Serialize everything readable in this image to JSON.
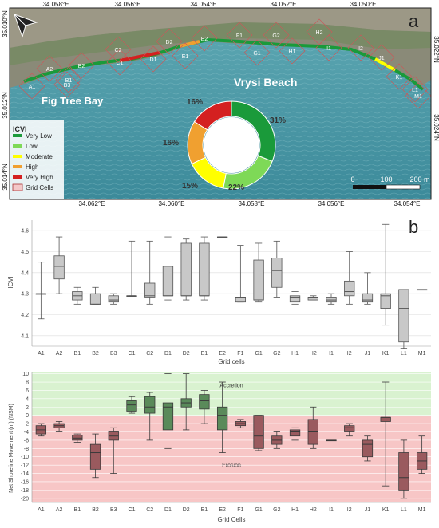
{
  "map": {
    "panel_letter": "a",
    "top_lons": [
      "34.058°E",
      "34.056°E",
      "34.054°E",
      "34.052°E",
      "34.050°E"
    ],
    "bottom_lons": [
      "34.062°E",
      "34.060°E",
      "34.058°E",
      "34.056°E",
      "34.054°E"
    ],
    "left_lats": [
      "35.010°N",
      "35.012°N",
      "35.014°N"
    ],
    "right_lats": [
      "35.022°N",
      "35.024°N"
    ],
    "place_labels": [
      "Vrysi Beach",
      "Fig Tree Bay"
    ],
    "cell_labels": [
      "A1",
      "A2",
      "B1",
      "B2",
      "B3",
      "C1",
      "C2",
      "D1",
      "D2",
      "E1",
      "E2",
      "F1",
      "G1",
      "G2",
      "H1",
      "H2",
      "I1",
      "I2",
      "J1",
      "K1",
      "L1",
      "M1"
    ],
    "legend": {
      "title": "ICVI",
      "items": [
        {
          "label": "Very Low",
          "color": "#1a9a3a"
        },
        {
          "label": "Low",
          "color": "#7ed957"
        },
        {
          "label": "Moderate",
          "color": "#ffff00"
        },
        {
          "label": "High",
          "color": "#f0a030"
        },
        {
          "label": "Very High",
          "color": "#d42020"
        },
        {
          "label": "Grid Cells",
          "color": "#f4c8c8"
        }
      ]
    },
    "donut": {
      "segments": [
        {
          "label": "31%",
          "value": 31,
          "color": "#1a9a3a"
        },
        {
          "label": "22%",
          "value": 22,
          "color": "#7ed957"
        },
        {
          "label": "15%",
          "value": 15,
          "color": "#ffff00"
        },
        {
          "label": "16%",
          "value": 16,
          "color": "#f0a030"
        },
        {
          "label": "16%",
          "value": 16,
          "color": "#d42020"
        }
      ]
    },
    "scale": {
      "labels": [
        "0",
        "100",
        "200 m"
      ]
    }
  },
  "chart_data": [
    {
      "type": "box",
      "panel_letter": "b",
      "xlabel": "Grid cells",
      "ylabel": "ICVI",
      "ylim": [
        4.05,
        4.65
      ],
      "yticks": [
        "4.1",
        "4.2",
        "4.3",
        "4.4",
        "4.5",
        "4.6"
      ],
      "categories": [
        "A1",
        "A2",
        "B1",
        "B2",
        "B3",
        "C1",
        "C2",
        "D1",
        "D2",
        "E1",
        "E2",
        "F1",
        "G1",
        "G2",
        "H1",
        "H2",
        "I1",
        "I2",
        "J1",
        "K1",
        "L1",
        "M1"
      ],
      "boxes": [
        {
          "min": 4.18,
          "q1": 4.3,
          "median": 4.3,
          "q3": 4.3,
          "max": 4.45
        },
        {
          "min": 4.3,
          "q1": 4.37,
          "median": 4.43,
          "q3": 4.48,
          "max": 4.57
        },
        {
          "min": 4.25,
          "q1": 4.27,
          "median": 4.29,
          "q3": 4.31,
          "max": 4.33
        },
        {
          "min": 4.25,
          "q1": 4.25,
          "median": 4.25,
          "q3": 4.3,
          "max": 4.33
        },
        {
          "min": 4.25,
          "q1": 4.26,
          "median": 4.27,
          "q3": 4.29,
          "max": 4.3
        },
        {
          "min": 4.29,
          "q1": 4.29,
          "median": 4.29,
          "q3": 4.29,
          "max": 4.55
        },
        {
          "min": 4.25,
          "q1": 4.28,
          "median": 4.29,
          "q3": 4.35,
          "max": 4.55
        },
        {
          "min": 4.27,
          "q1": 4.29,
          "median": 4.29,
          "q3": 4.43,
          "max": 4.57
        },
        {
          "min": 4.27,
          "q1": 4.29,
          "median": 4.29,
          "q3": 4.54,
          "max": 4.56
        },
        {
          "min": 4.27,
          "q1": 4.29,
          "median": 4.29,
          "q3": 4.54,
          "max": 4.57
        },
        {
          "min": 4.57,
          "q1": 4.57,
          "median": 4.57,
          "q3": 4.57,
          "max": 4.57
        },
        {
          "min": 4.26,
          "q1": 4.26,
          "median": 4.28,
          "q3": 4.28,
          "max": 4.53
        },
        {
          "min": 4.26,
          "q1": 4.27,
          "median": 4.27,
          "q3": 4.46,
          "max": 4.54
        },
        {
          "min": 4.28,
          "q1": 4.33,
          "median": 4.41,
          "q3": 4.47,
          "max": 4.55
        },
        {
          "min": 4.25,
          "q1": 4.26,
          "median": 4.28,
          "q3": 4.29,
          "max": 4.31
        },
        {
          "min": 4.27,
          "q1": 4.27,
          "median": 4.28,
          "q3": 4.28,
          "max": 4.29
        },
        {
          "min": 4.25,
          "q1": 4.26,
          "median": 4.27,
          "q3": 4.28,
          "max": 4.3
        },
        {
          "min": 4.25,
          "q1": 4.29,
          "median": 4.31,
          "q3": 4.36,
          "max": 4.5
        },
        {
          "min": 4.25,
          "q1": 4.26,
          "median": 4.27,
          "q3": 4.3,
          "max": 4.4
        },
        {
          "min": 4.15,
          "q1": 4.23,
          "median": 4.29,
          "q3": 4.3,
          "max": 4.63
        },
        {
          "min": 4.04,
          "q1": 4.07,
          "median": 4.23,
          "q3": 4.32,
          "max": 4.32
        },
        {
          "min": 4.32,
          "q1": 4.32,
          "median": 4.32,
          "q3": 4.32,
          "max": 4.32
        }
      ]
    },
    {
      "type": "box",
      "panel_letter": "c",
      "xlabel": "Grid Cells",
      "ylabel": "Net Shoreline Movement (m) (NSM)",
      "ylim": [
        -21,
        10.5
      ],
      "yticks": [
        "10",
        "8",
        "6",
        "4",
        "2",
        "0",
        "-2",
        "-4",
        "-6",
        "-8",
        "-10",
        "-12",
        "-14",
        "-16",
        "-18",
        "-20"
      ],
      "zone_labels": {
        "accretion": "Accretion",
        "erosion": "Erosion"
      },
      "accretion_color": "#d9f2d0",
      "erosion_color": "#f7c6c6",
      "box_color_pos": "#5a8a5a",
      "box_color_neg": "#9a5a5e",
      "categories": [
        "A1",
        "A2",
        "B1",
        "B2",
        "B3",
        "C1",
        "C2",
        "D1",
        "D2",
        "E1",
        "E2",
        "F1",
        "G1",
        "G2",
        "H1",
        "H2",
        "I1",
        "I2",
        "J1",
        "K1",
        "L1",
        "M1"
      ],
      "boxes": [
        {
          "min": -5,
          "q1": -4.5,
          "median": -3.5,
          "q3": -2.5,
          "max": -2
        },
        {
          "min": -4,
          "q1": -3,
          "median": -2.5,
          "q3": -2,
          "max": -1.5
        },
        {
          "min": -6.5,
          "q1": -6,
          "median": -5.5,
          "q3": -4.8,
          "max": -4.5
        },
        {
          "min": -15,
          "q1": -13,
          "median": -9,
          "q3": -7,
          "max": -4.5
        },
        {
          "min": -14,
          "q1": -6,
          "median": -5,
          "q3": -4,
          "max": -3
        },
        {
          "min": 0.5,
          "q1": 1,
          "median": 2.5,
          "q3": 3.5,
          "max": 4.5
        },
        {
          "min": -6,
          "q1": 0.5,
          "median": 2,
          "q3": 4.5,
          "max": 5.5
        },
        {
          "min": -8,
          "q1": -3.5,
          "median": 2,
          "q3": 3,
          "max": 10
        },
        {
          "min": -3.5,
          "q1": 2,
          "median": 3,
          "q3": 4,
          "max": 10
        },
        {
          "min": -2,
          "q1": 1.5,
          "median": 3.5,
          "q3": 5,
          "max": 6
        },
        {
          "min": -9,
          "q1": -3.5,
          "median": 0,
          "q3": 2,
          "max": 8
        },
        {
          "min": -3,
          "q1": -2.5,
          "median": -2,
          "q3": -1.5,
          "max": -1
        },
        {
          "min": -8.5,
          "q1": -8,
          "median": -5,
          "q3": 0,
          "max": 0
        },
        {
          "min": -8,
          "q1": -7,
          "median": -6,
          "q3": -5,
          "max": -4
        },
        {
          "min": -6,
          "q1": -5,
          "median": -4,
          "q3": -3.5,
          "max": -3
        },
        {
          "min": -8,
          "q1": -7,
          "median": -4,
          "q3": -1,
          "max": 2
        },
        {
          "min": -6,
          "q1": -6,
          "median": -6,
          "q3": -6,
          "max": -6
        },
        {
          "min": -5,
          "q1": -4,
          "median": -3,
          "q3": -2.5,
          "max": -2
        },
        {
          "min": -11,
          "q1": -10,
          "median": -7,
          "q3": -6,
          "max": -5
        },
        {
          "min": -17,
          "q1": -1.5,
          "median": -0.5,
          "q3": -0.5,
          "max": 8
        },
        {
          "min": -20,
          "q1": -18,
          "median": -15,
          "q3": -9,
          "max": -6
        },
        {
          "min": -14,
          "q1": -13,
          "median": -11,
          "q3": -9,
          "max": -5
        }
      ]
    }
  ]
}
